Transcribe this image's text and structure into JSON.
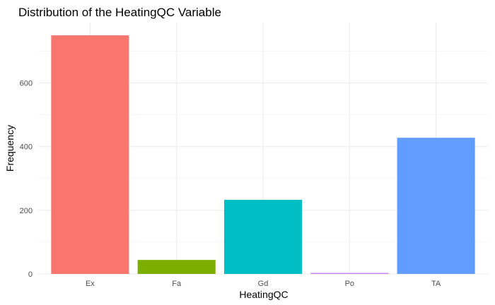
{
  "chart_data": {
    "type": "bar",
    "title": "Distribution of the HeatingQC Variable",
    "xlabel": "HeatingQC",
    "ylabel": "Frequency",
    "categories": [
      "Ex",
      "Fa",
      "Gd",
      "Po",
      "TA"
    ],
    "values": [
      750,
      44,
      233,
      3,
      428
    ],
    "colors": [
      "#F8766D",
      "#7CAE00",
      "#00BFC4",
      "#C77CFF",
      "#619CFF"
    ],
    "ylim": [
      0,
      790
    ],
    "yticks": [
      0,
      200,
      400,
      600
    ],
    "grid": true,
    "legend": "none"
  }
}
